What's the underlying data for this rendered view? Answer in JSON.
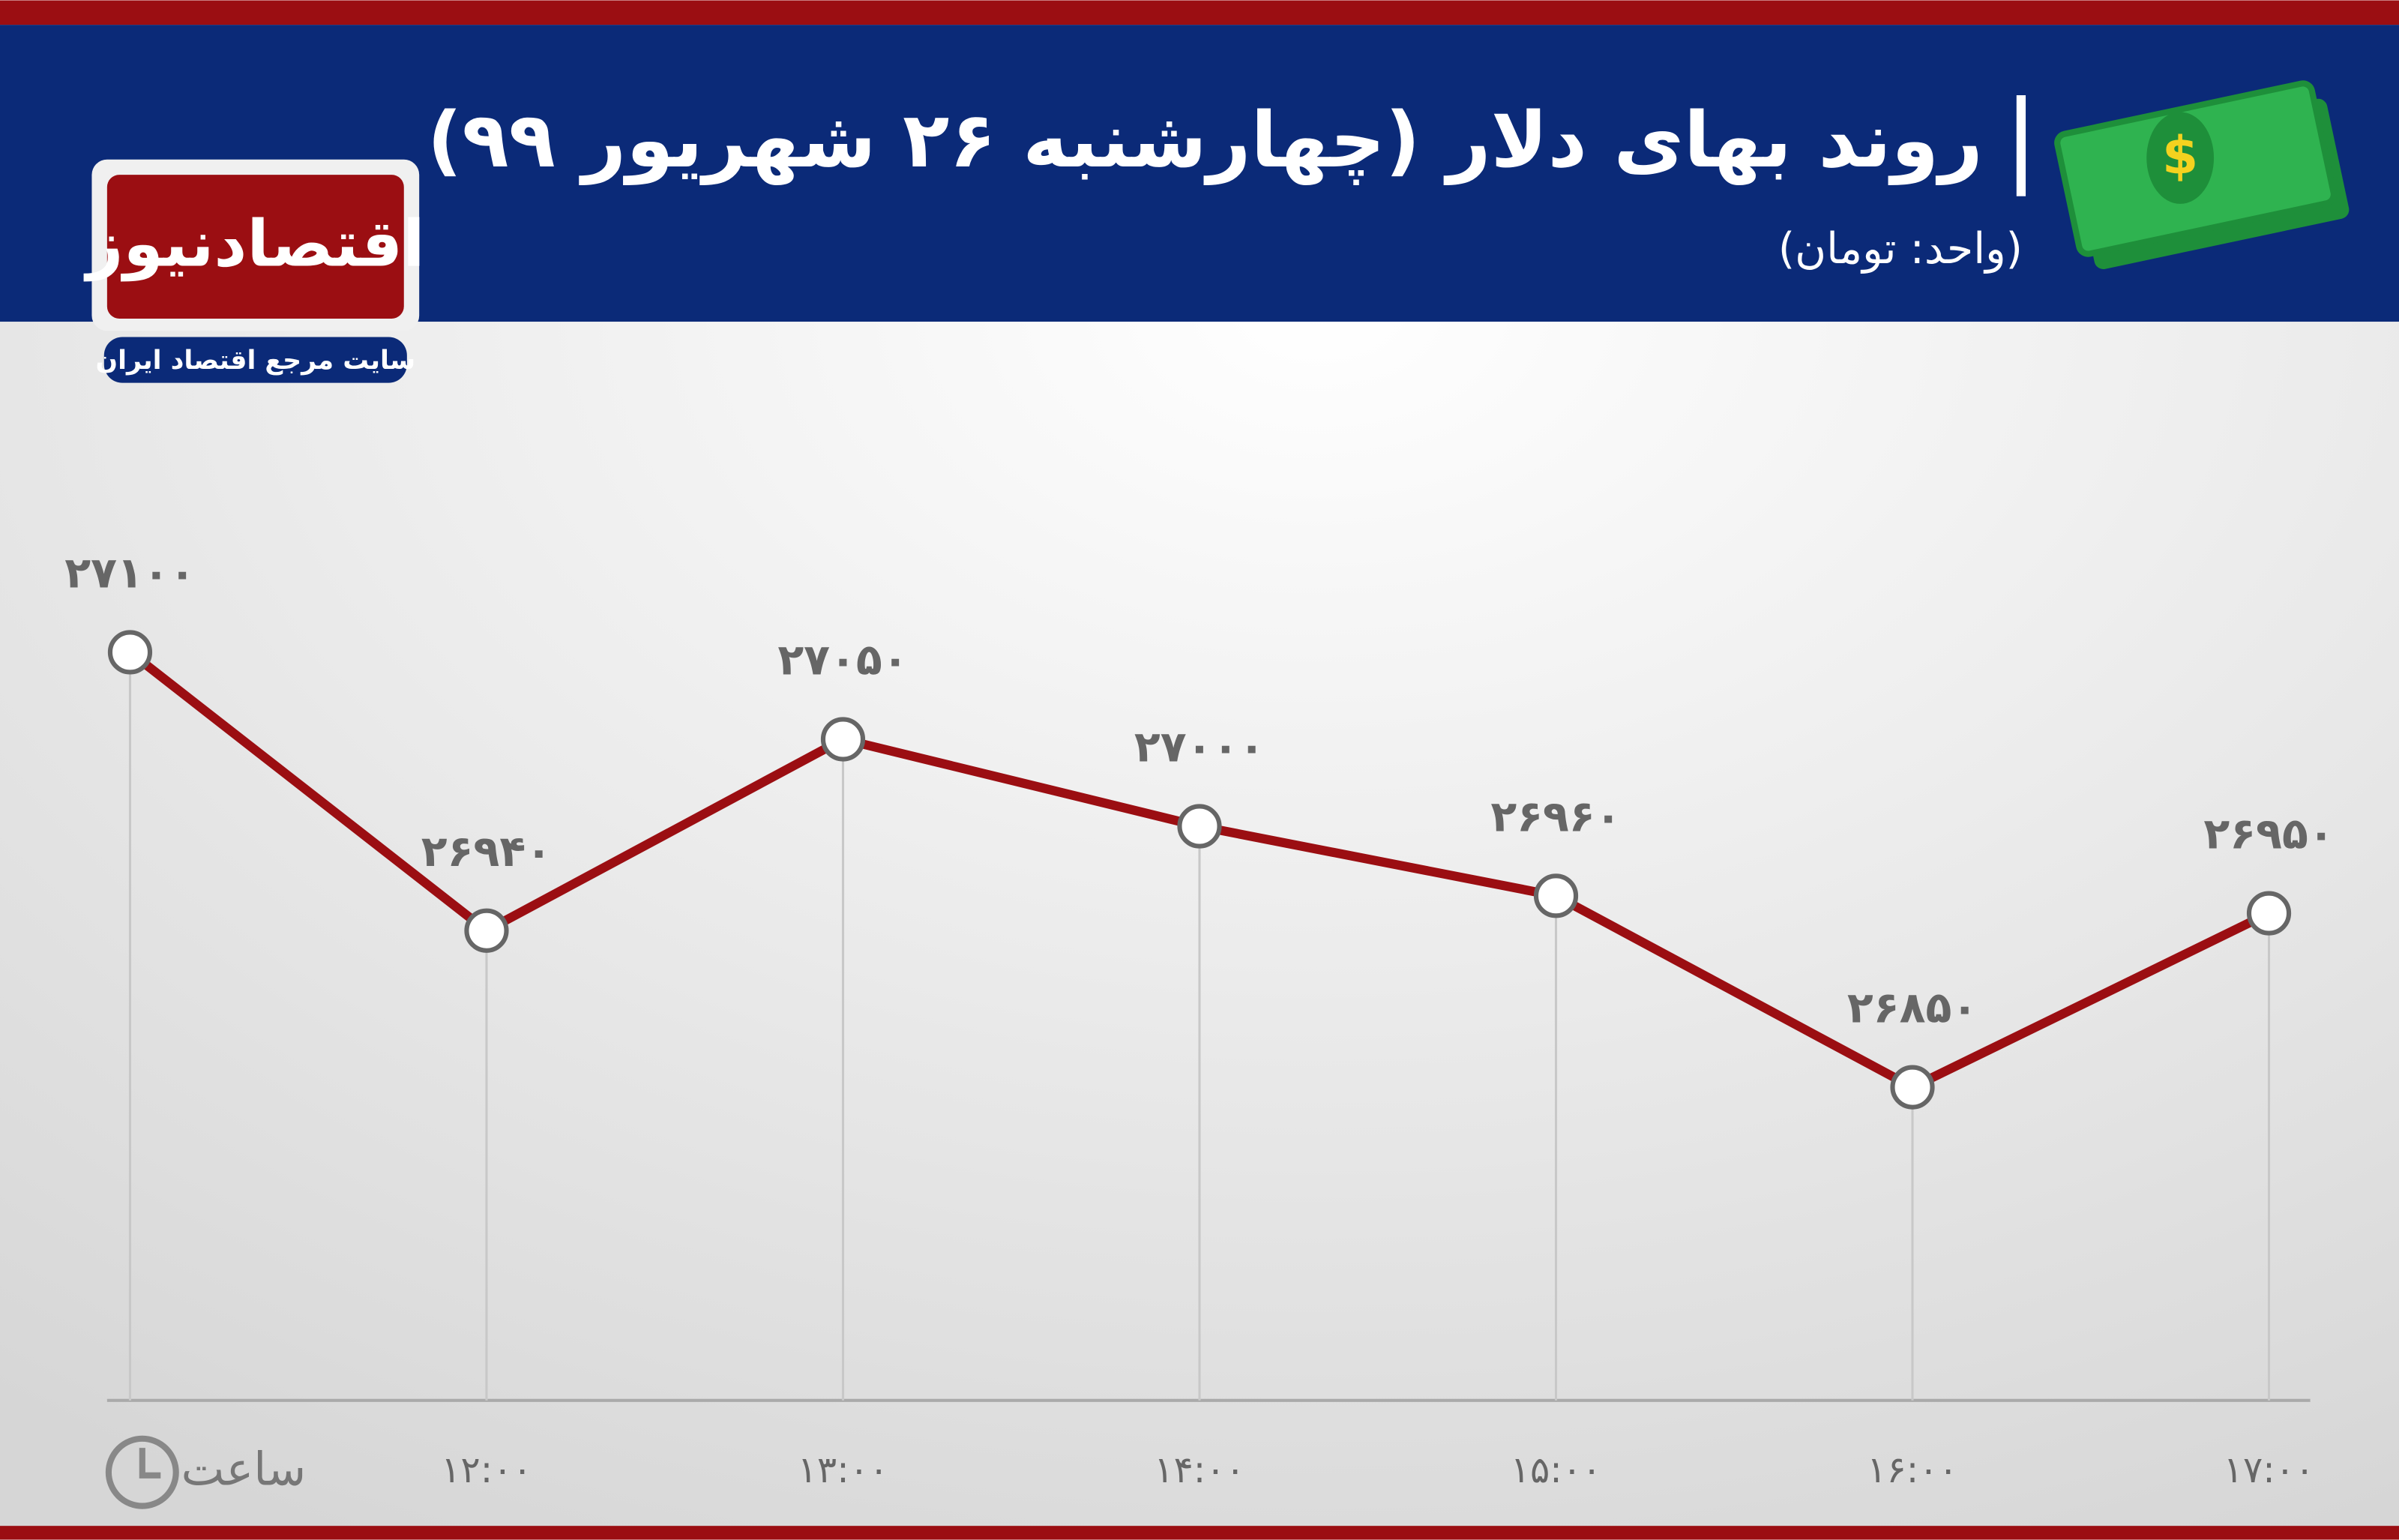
{
  "chart_data": {
    "type": "line",
    "title": "روند بهای دلار (چهارشنبه ۲۶ شهریور ۹۹)",
    "subtitle": "(واحد: تومان)",
    "x_label": "ساعت",
    "categories": [
      null,
      "۱۲:۰۰",
      "۱۳:۰۰",
      "۱۴:۰۰",
      "۱۵:۰۰",
      "۱۶:۰۰",
      "۱۷:۰۰"
    ],
    "values": [
      27100,
      26940,
      27050,
      27000,
      26960,
      26850,
      26950
    ],
    "value_labels": [
      "۲۷۱۰۰",
      "۲۶۹۴۰",
      "۲۷۰۵۰",
      "۲۷۰۰۰",
      "۲۶۹۶۰",
      "۲۶۸۵۰",
      "۲۶۹۵۰"
    ],
    "color": "#9b0e12",
    "ylim": [
      26670,
      27290
    ]
  },
  "logo": {
    "name": "اقتصادنیوز",
    "tagline": "سایت مرجع اقتصاد ایران"
  }
}
